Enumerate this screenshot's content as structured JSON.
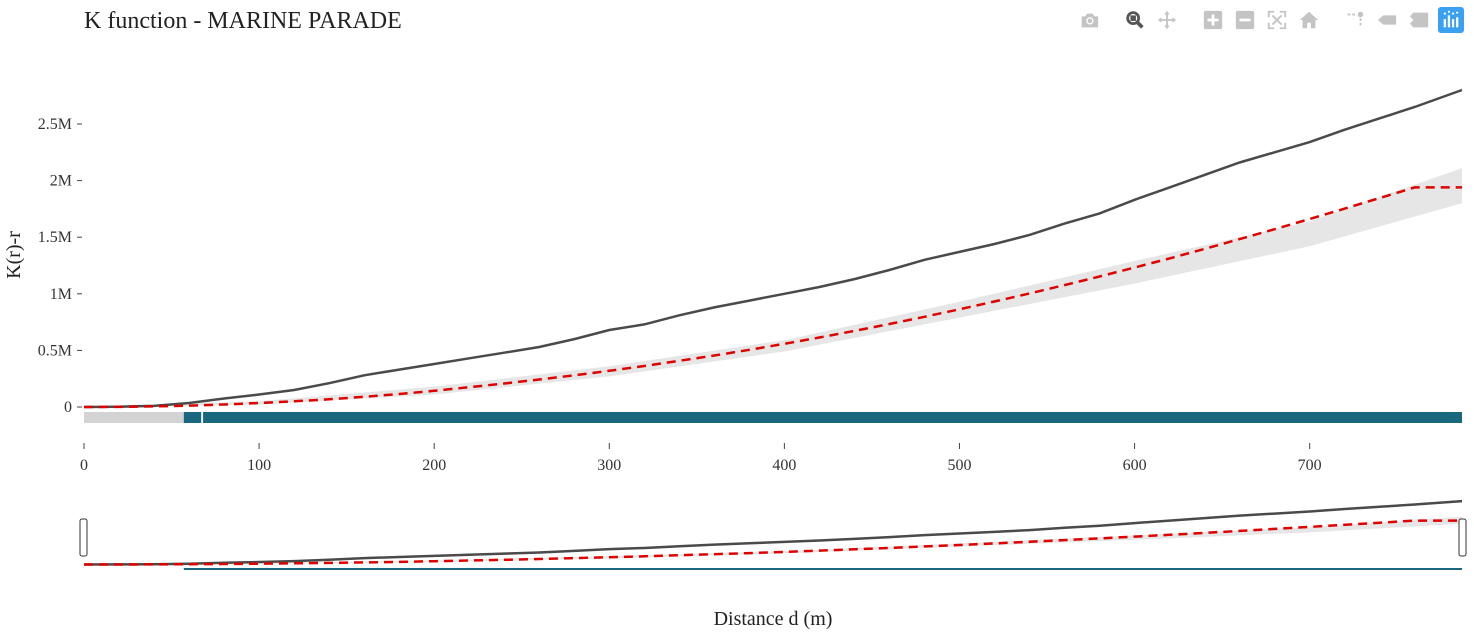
{
  "header": {
    "title": "K function - MARINE PARADE"
  },
  "modebar": [
    {
      "name": "camera-icon",
      "label": "Download plot as a png"
    },
    {
      "name": "zoom-icon",
      "label": "Zoom"
    },
    {
      "name": "pan-icon",
      "label": "Pan"
    },
    {
      "name": "zoom-in-icon",
      "label": "Zoom in"
    },
    {
      "name": "zoom-out-icon",
      "label": "Zoom out"
    },
    {
      "name": "autoscale-icon",
      "label": "Autoscale"
    },
    {
      "name": "home-icon",
      "label": "Reset axes"
    },
    {
      "name": "spike-lines-icon",
      "label": "Toggle Spike Lines"
    },
    {
      "name": "hover-closest-icon",
      "label": "Show closest data on hover"
    },
    {
      "name": "hover-compare-icon",
      "label": "Compare data on hover"
    },
    {
      "name": "plotly-logo-icon",
      "label": "Produced with Plotly"
    }
  ],
  "chart_data": {
    "type": "line",
    "title": "K function - MARINE PARADE",
    "xlabel": "Distance d (m)",
    "ylabel": "K(r)-r",
    "xlim": [
      0,
      787
    ],
    "ylim": [
      -200000,
      2850000
    ],
    "x_ticks": [
      0,
      100,
      200,
      300,
      400,
      500,
      600,
      700
    ],
    "x_tick_labels": [
      "0",
      "100",
      "200",
      "300",
      "400",
      "500",
      "600",
      "700"
    ],
    "y_ticks": [
      0,
      500000,
      1000000,
      1500000,
      2000000,
      2500000
    ],
    "y_tick_labels": [
      "0",
      "0.5M",
      "1M",
      "1.5M",
      "2M",
      "2.5M"
    ],
    "series": [
      {
        "kind": "observed",
        "color": "#4a4a4a",
        "x": [
          0,
          20,
          40,
          60,
          80,
          100,
          120,
          140,
          160,
          180,
          200,
          220,
          240,
          260,
          280,
          300,
          320,
          340,
          360,
          380,
          400,
          420,
          440,
          460,
          480,
          500,
          520,
          540,
          560,
          580,
          600,
          620,
          640,
          660,
          680,
          700,
          720,
          740,
          760,
          787
        ],
        "values": [
          0,
          3000,
          10000,
          35000,
          75000,
          110000,
          150000,
          210000,
          280000,
          330000,
          380000,
          430000,
          480000,
          530000,
          600000,
          680000,
          730000,
          810000,
          880000,
          940000,
          1000000,
          1060000,
          1130000,
          1210000,
          1300000,
          1370000,
          1440000,
          1520000,
          1620000,
          1710000,
          1830000,
          1940000,
          2050000,
          2160000,
          2250000,
          2340000,
          2450000,
          2550000,
          2650000,
          2800000
        ]
      },
      {
        "kind": "theoretical",
        "color": "#e00000",
        "dash": true,
        "x": [
          0,
          20,
          40,
          60,
          80,
          100,
          120,
          140,
          160,
          180,
          200,
          220,
          240,
          260,
          280,
          300,
          320,
          340,
          360,
          380,
          400,
          420,
          440,
          460,
          480,
          500,
          520,
          540,
          560,
          580,
          600,
          620,
          640,
          660,
          680,
          700,
          720,
          740,
          760,
          787
        ],
        "values": [
          0,
          1000,
          5000,
          12000,
          22000,
          35000,
          50000,
          68000,
          90000,
          115000,
          143000,
          175000,
          208000,
          243000,
          280000,
          320000,
          362000,
          408000,
          455000,
          505000,
          558000,
          614000,
          672000,
          733000,
          797000,
          863000,
          932000,
          1003000,
          1077000,
          1153000,
          1232000,
          1313000,
          1397000,
          1483000,
          1571000,
          1661000,
          1753000,
          1846000,
          1940000,
          1940000
        ]
      }
    ],
    "envelope": {
      "color": "#e6e6e6",
      "x": [
        0,
        100,
        200,
        300,
        400,
        500,
        600,
        700,
        787
      ],
      "lower": [
        -5000,
        20000,
        110000,
        270000,
        490000,
        790000,
        1090000,
        1420000,
        1800000
      ],
      "upper": [
        5000,
        50000,
        180000,
        360000,
        590000,
        930000,
        1290000,
        1640000,
        2110000
      ]
    },
    "significance_strip": {
      "description": "colored rectangles just below zero",
      "grey_color": "#d3d3d3",
      "teal_color": "#1a6880",
      "segments": [
        {
          "from": 0,
          "to": 57,
          "color": "grey"
        },
        {
          "from": 57,
          "to": 67,
          "color": "teal"
        },
        {
          "from": 67,
          "to": 68,
          "color": "white"
        },
        {
          "from": 68,
          "to": 787,
          "color": "teal"
        }
      ]
    },
    "range_slider": true,
    "grid": false,
    "legend": "none"
  }
}
